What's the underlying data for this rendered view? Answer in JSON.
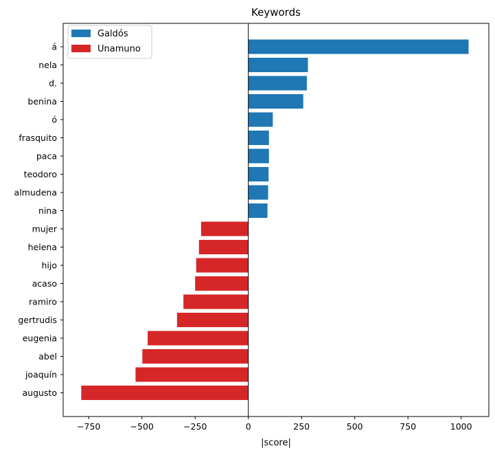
{
  "chart_data": {
    "type": "bar",
    "orientation": "horizontal",
    "title": "Keywords",
    "xlabel": "|score|",
    "ylabel": "",
    "xlim": [
      -870,
      1130
    ],
    "xticks": [
      -750,
      -500,
      -250,
      0,
      250,
      500,
      750,
      1000
    ],
    "xtick_labels": [
      "−750",
      "−500",
      "−250",
      "0",
      "250",
      "500",
      "750",
      "1000"
    ],
    "grid": false,
    "legend_position": "top-left",
    "categories": [
      "á",
      "nela",
      "d.",
      "benina",
      "ó",
      "frasquito",
      "paca",
      "teodoro",
      "almudena",
      "nina",
      "mujer",
      "helena",
      "hijo",
      "acaso",
      "ramiro",
      "gertrudis",
      "eugenia",
      "abel",
      "joaquín",
      "augusto"
    ],
    "series": [
      {
        "name": "Galdós",
        "color": "#1f77b4",
        "values": [
          1035,
          280,
          275,
          258,
          115,
          97,
          97,
          95,
          93,
          90,
          null,
          null,
          null,
          null,
          null,
          null,
          null,
          null,
          null,
          null
        ]
      },
      {
        "name": "Unamuno",
        "color": "#d62728",
        "values": [
          null,
          null,
          null,
          null,
          null,
          null,
          null,
          null,
          null,
          null,
          -222,
          -232,
          -245,
          -250,
          -305,
          -335,
          -473,
          -498,
          -530,
          -785
        ]
      }
    ]
  }
}
